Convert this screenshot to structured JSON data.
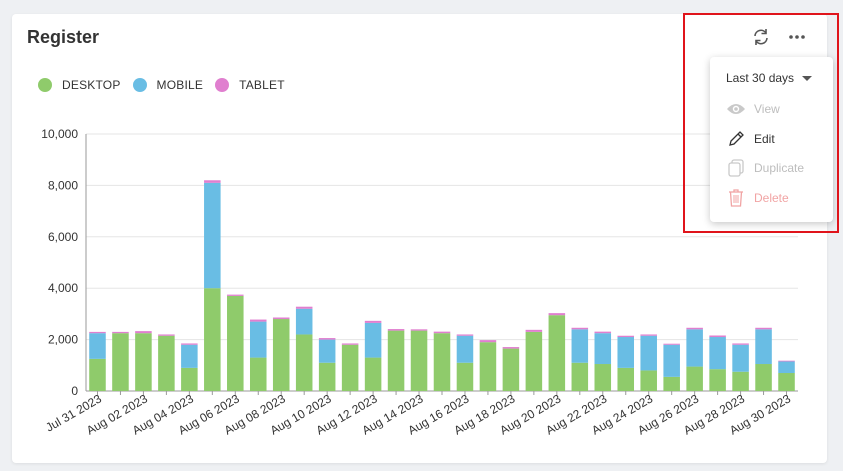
{
  "card": {
    "title": "Register"
  },
  "toolbar": {
    "refresh_icon": "refresh-icon",
    "more_icon": "more-horizontal-icon"
  },
  "legend": [
    {
      "label": "DESKTOP",
      "color": "#8fcb6b"
    },
    {
      "label": "MOBILE",
      "color": "#69bde4"
    },
    {
      "label": "TABLET",
      "color": "#e07fcf"
    }
  ],
  "menu": {
    "range_label": "Last 30 days",
    "items": [
      {
        "label": "View",
        "icon": "eye-icon",
        "enabled": false
      },
      {
        "label": "Edit",
        "icon": "pencil-icon",
        "enabled": true
      },
      {
        "label": "Duplicate",
        "icon": "copy-icon",
        "enabled": false
      },
      {
        "label": "Delete",
        "icon": "trash-icon",
        "enabled": false
      }
    ]
  },
  "chart_data": {
    "type": "bar",
    "stacked": true,
    "ylim": [
      0,
      10000
    ],
    "yticks": [
      "0",
      "2,000",
      "4,000",
      "6,000",
      "8,000",
      "10,000"
    ],
    "categories": [
      "Jul 31 2023",
      "Aug 01 2023",
      "Aug 02 2023",
      "Aug 03 2023",
      "Aug 04 2023",
      "Aug 05 2023",
      "Aug 06 2023",
      "Aug 07 2023",
      "Aug 08 2023",
      "Aug 09 2023",
      "Aug 10 2023",
      "Aug 11 2023",
      "Aug 12 2023",
      "Aug 13 2023",
      "Aug 14 2023",
      "Aug 15 2023",
      "Aug 16 2023",
      "Aug 17 2023",
      "Aug 18 2023",
      "Aug 19 2023",
      "Aug 20 2023",
      "Aug 21 2023",
      "Aug 22 2023",
      "Aug 23 2023",
      "Aug 24 2023",
      "Aug 25 2023",
      "Aug 26 2023",
      "Aug 27 2023",
      "Aug 28 2023",
      "Aug 29 2023",
      "Aug 30 2023"
    ],
    "x_tick_labels": [
      "Jul 31 2023",
      "Aug 02 2023",
      "Aug 04 2023",
      "Aug 06 2023",
      "Aug 08 2023",
      "Aug 10 2023",
      "Aug 12 2023",
      "Aug 14 2023",
      "Aug 16 2023",
      "Aug 18 2023",
      "Aug 20 2023",
      "Aug 22 2023",
      "Aug 24 2023",
      "Aug 26 2023",
      "Aug 28 2023",
      "Aug 30 2023"
    ],
    "series": [
      {
        "name": "DESKTOP",
        "color": "#8fcb6b",
        "values": [
          1250,
          2250,
          2250,
          2150,
          900,
          4000,
          3700,
          1300,
          2800,
          2200,
          1100,
          1800,
          1300,
          2350,
          2350,
          2250,
          1100,
          1900,
          1650,
          2300,
          2950,
          1100,
          1050,
          900,
          800,
          550,
          950,
          850,
          750,
          1050,
          700
        ]
      },
      {
        "name": "MOBILE",
        "color": "#69bde4",
        "values": [
          1000,
          0,
          0,
          0,
          900,
          4100,
          0,
          1400,
          0,
          1000,
          900,
          0,
          1350,
          0,
          0,
          0,
          1050,
          0,
          0,
          0,
          0,
          1300,
          1200,
          1200,
          1350,
          1250,
          1450,
          1250,
          1050,
          1350,
          450
        ]
      },
      {
        "name": "TABLET",
        "color": "#e07fcf",
        "values": [
          50,
          50,
          80,
          50,
          50,
          100,
          50,
          80,
          60,
          80,
          60,
          50,
          80,
          60,
          50,
          60,
          50,
          80,
          60,
          80,
          80,
          60,
          60,
          50,
          50,
          40,
          60,
          60,
          50,
          60,
          30
        ]
      }
    ]
  }
}
